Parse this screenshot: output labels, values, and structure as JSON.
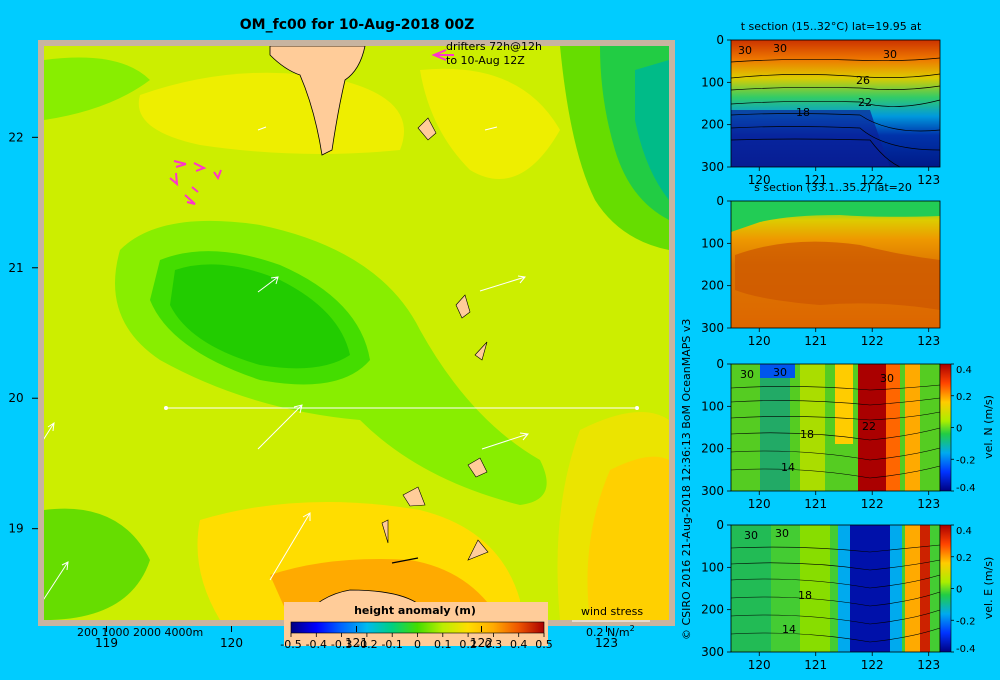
{
  "title": "OM_fc00 for 10-Aug-2018 00Z",
  "credit": "© CSIRO 2016   21-Aug-2018 12:36:13 BoM OceanMAPS v3",
  "colors": {
    "background": "#00CCFF",
    "land": "#FFCC99",
    "frame": "#C8B4A0",
    "drifter": "#FF33CC",
    "vector": "#FFFFFF"
  },
  "chart_data": [
    {
      "type": "heatmap",
      "name": "height anomaly map",
      "x_ticks": [
        "119",
        "120",
        "121",
        "122",
        "123"
      ],
      "y_ticks": [
        "22",
        "21",
        "20",
        "19"
      ],
      "xlim": [
        118.5,
        123.5
      ],
      "ylim": [
        18.3,
        22.7
      ],
      "colorbar": {
        "title": "height anomaly (m)",
        "ticks": [
          "-0.5",
          "-0.4",
          "-0.3",
          "-0.2",
          "-0.1",
          "0",
          "0.1",
          "0.2",
          "0.3",
          "0.4",
          "0.5"
        ],
        "range": [
          -0.5,
          0.5
        ]
      },
      "section_line": {
        "lat": 20,
        "lon_start": 119.5,
        "lon_end": 123.3
      },
      "depth_legend": "200  1000  2000  4000m",
      "drifters_label": [
        "drifters 72h@12h",
        "to 10-Aug 12Z"
      ],
      "wind_stress": {
        "label": "wind stress",
        "scale": "0.2 N/m",
        "exponent": "2"
      },
      "anomaly_regions": [
        {
          "shape": "field",
          "value": 0.08
        },
        {
          "shape": "low_center",
          "lon": 120.2,
          "lat": 20.8,
          "value": -0.05
        },
        {
          "shape": "low_ne",
          "lon": 123.4,
          "lat": 22.0,
          "value": -0.1
        },
        {
          "shape": "high_n",
          "lon": 120.8,
          "lat": 22.2,
          "value": 0.15
        },
        {
          "shape": "high_s",
          "lon": 121.3,
          "lat": 18.6,
          "value": 0.3
        },
        {
          "shape": "high_se",
          "lon": 123.2,
          "lat": 18.9,
          "value": 0.25
        }
      ]
    },
    {
      "type": "heatmap",
      "name": "t section",
      "title": "t section (15..32°C) lat=19.95 at",
      "x_ticks": [
        "120",
        "121",
        "122",
        "123"
      ],
      "y_ticks": [
        "0",
        "100",
        "200",
        "300"
      ],
      "xlim": [
        119.5,
        123.2
      ],
      "ylim": [
        300,
        0
      ],
      "contour_labels": [
        "30",
        "30",
        "30",
        "26",
        "22",
        "18"
      ]
    },
    {
      "type": "heatmap",
      "name": "s section",
      "title": "s section (33.1..35.2) lat=20",
      "x_ticks": [
        "120",
        "121",
        "122",
        "123"
      ],
      "y_ticks": [
        "0",
        "100",
        "200",
        "300"
      ],
      "xlim": [
        119.5,
        123.2
      ],
      "ylim": [
        300,
        0
      ]
    },
    {
      "type": "heatmap",
      "name": "vel N section",
      "x_ticks": [
        "120",
        "121",
        "122",
        "123"
      ],
      "y_ticks": [
        "0",
        "100",
        "200",
        "300"
      ],
      "xlim": [
        119.5,
        123.2
      ],
      "ylim": [
        300,
        0
      ],
      "contour_labels": [
        "30",
        "30",
        "30",
        "22",
        "18",
        "14"
      ],
      "colorbar": {
        "title": "vel. N (m/s)",
        "ticks": [
          "0.4",
          "0.2",
          "0",
          "-0.2",
          "-0.4"
        ],
        "range": [
          -0.4,
          0.4
        ]
      }
    },
    {
      "type": "heatmap",
      "name": "vel E section",
      "x_ticks": [
        "120",
        "121",
        "122",
        "123"
      ],
      "y_ticks": [
        "0",
        "100",
        "200",
        "300"
      ],
      "xlim": [
        119.5,
        123.2
      ],
      "ylim": [
        300,
        0
      ],
      "contour_labels": [
        "30",
        "30",
        "18",
        "14"
      ],
      "colorbar": {
        "title": "vel. E (m/s)",
        "ticks": [
          "0.4",
          "0.2",
          "0",
          "-0.2",
          "-0.4"
        ],
        "range": [
          -0.4,
          0.4
        ]
      }
    }
  ]
}
